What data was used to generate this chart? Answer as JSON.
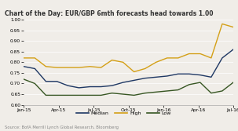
{
  "title": "Chart of the Day: EUR/GBP 6mth forecasts head towards 1.00",
  "source": "Source: BofA Merrill Lynch Global Research, Bloomberg",
  "x_labels": [
    "Jan-15",
    "Apr-15",
    "Jul-15",
    "Oct-15",
    "Jan-16",
    "Apr-16",
    "Jul-16"
  ],
  "x_ticks": [
    0,
    3,
    6,
    9,
    12,
    15,
    18
  ],
  "ylim": [
    0.6,
    1.0
  ],
  "yticks": [
    0.6,
    0.65,
    0.7,
    0.75,
    0.8,
    0.85,
    0.9,
    0.95,
    1.0
  ],
  "median_color": "#1f3864",
  "high_color": "#d4a017",
  "low_color": "#375623",
  "bg_color": "#f0ede8",
  "title_color": "#333333",
  "source_color": "#888888",
  "grid_color": "#ffffff",
  "median": [
    0.78,
    0.77,
    0.71,
    0.71,
    0.69,
    0.68,
    0.685,
    0.685,
    0.69,
    0.705,
    0.715,
    0.725,
    0.73,
    0.735,
    0.745,
    0.745,
    0.74,
    0.73,
    0.82,
    0.86
  ],
  "high": [
    0.82,
    0.82,
    0.78,
    0.775,
    0.775,
    0.775,
    0.78,
    0.775,
    0.81,
    0.8,
    0.755,
    0.77,
    0.8,
    0.82,
    0.82,
    0.84,
    0.84,
    0.82,
    0.98,
    0.965
  ],
  "low": [
    0.72,
    0.7,
    0.645,
    0.645,
    0.645,
    0.645,
    0.645,
    0.645,
    0.655,
    0.65,
    0.645,
    0.655,
    0.66,
    0.665,
    0.67,
    0.695,
    0.705,
    0.655,
    0.665,
    0.705
  ],
  "n_points": 20,
  "title_line_color": "#4472c4",
  "title_fontsize": 5.5,
  "tick_fontsize": 4.2,
  "source_fontsize": 3.8,
  "legend_fontsize": 4.5,
  "linewidth": 1.0
}
